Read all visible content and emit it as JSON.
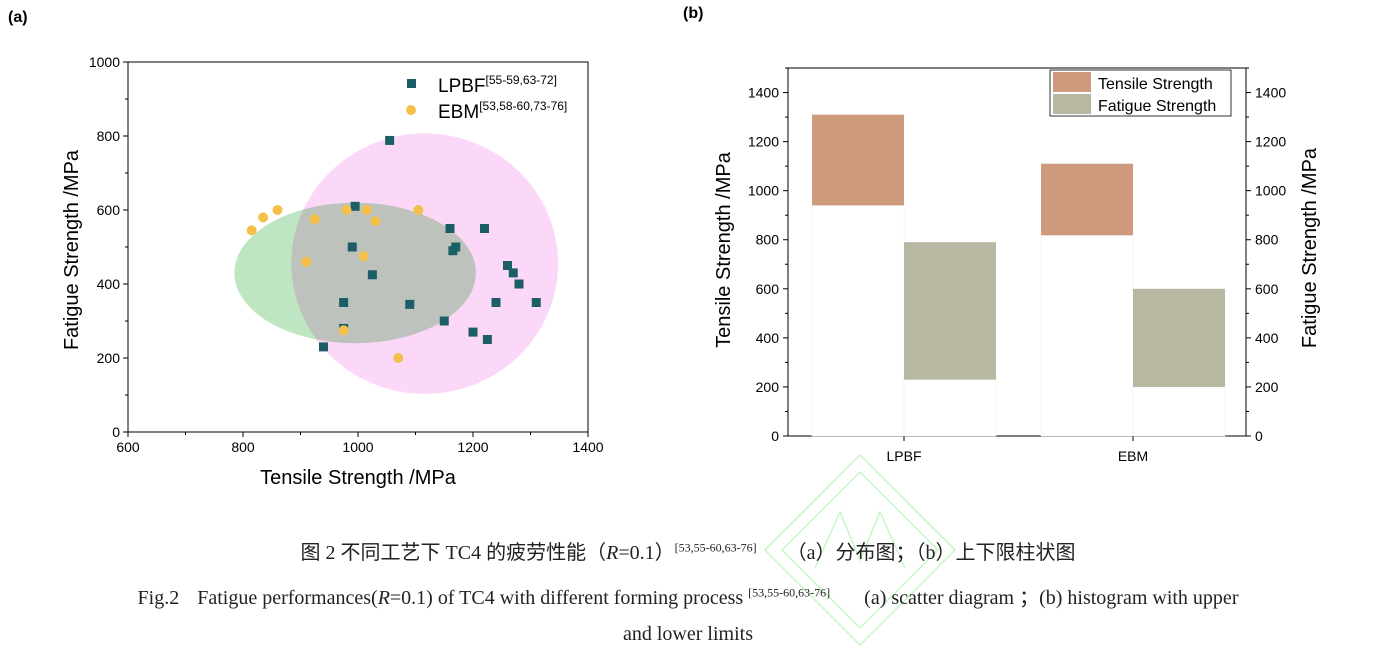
{
  "panel_labels": {
    "a": "(a)",
    "b": "(b)"
  },
  "chart_data": [
    {
      "type": "scatter",
      "xlabel": "Tensile Strength /MPa",
      "ylabel": "Fatigue Strength /MPa",
      "xlim": [
        600,
        1400
      ],
      "ylim": [
        0,
        1000
      ],
      "xticks": [
        600,
        800,
        1000,
        1200,
        1400
      ],
      "yticks": [
        0,
        200,
        400,
        600,
        800,
        1000
      ],
      "legend_position": "top-right",
      "series": [
        {
          "name": "LPBF",
          "name_sup": "[55-59,63-72]",
          "marker": "square",
          "color": "#1b5e66",
          "points": [
            [
              1055,
              788
            ],
            [
              995,
              610
            ],
            [
              990,
              500
            ],
            [
              1025,
              425
            ],
            [
              975,
              350
            ],
            [
              975,
              280
            ],
            [
              940,
              230
            ],
            [
              1090,
              345
            ],
            [
              1160,
              550
            ],
            [
              1165,
              490
            ],
            [
              1170,
              500
            ],
            [
              1220,
              550
            ],
            [
              1150,
              300
            ],
            [
              1200,
              270
            ],
            [
              1225,
              250
            ],
            [
              1240,
              350
            ],
            [
              1260,
              450
            ],
            [
              1270,
              430
            ],
            [
              1280,
              400
            ],
            [
              1310,
              350
            ]
          ]
        },
        {
          "name": "EBM",
          "name_sup": "[53,58-60,73-76]",
          "marker": "circle",
          "color": "#f5c04a",
          "points": [
            [
              815,
              545
            ],
            [
              835,
              580
            ],
            [
              860,
              600
            ],
            [
              910,
              460
            ],
            [
              925,
              575
            ],
            [
              980,
              600
            ],
            [
              1015,
              600
            ],
            [
              1030,
              570
            ],
            [
              1010,
              475
            ],
            [
              1105,
              600
            ],
            [
              975,
              275
            ],
            [
              1070,
              200
            ]
          ]
        }
      ],
      "regions": [
        {
          "group": "EBM",
          "color": "#7fce85",
          "cx": 995,
          "cy": 430,
          "rx": 210,
          "ry": 190
        },
        {
          "group": "LPBF",
          "color": "#f9b8f2",
          "cx": 1116,
          "cy": 455,
          "rx": 232,
          "ry": 352
        }
      ]
    },
    {
      "type": "bar",
      "categories": [
        "LPBF",
        "EBM"
      ],
      "ylabel_left": "Tensile Strength /MPa",
      "ylabel_right": "Fatigue Strength /MPa",
      "ylim": [
        0,
        1500
      ],
      "yticks": [
        0,
        200,
        400,
        600,
        800,
        1000,
        1200,
        1400
      ],
      "legend_position": "top-right",
      "series": [
        {
          "name": "Tensile Strength",
          "color": "#cd9a7e",
          "ranges": [
            [
              940,
              1310
            ],
            [
              818,
              1110
            ]
          ]
        },
        {
          "name": "Fatigue Strength",
          "color": "#b7b7a2",
          "ranges": [
            [
              230,
              790
            ],
            [
              200,
              600
            ]
          ]
        }
      ]
    }
  ],
  "caption": {
    "zh_prefix": "图 2  不同工艺下 TC4 的疲劳性能（",
    "r_symbol": "R",
    "zh_r_value": "=0.1）",
    "zh_refs": "[53,55-60,63-76]",
    "zh_suffix": "（a）分布图；（b）上下限柱状图",
    "en_fig": "Fig.2",
    "en_text1": "Fatigue performances(",
    "en_r_value": "=0.1) of TC4 with different forming process ",
    "en_refs": "[53,55-60,63-76]",
    "en_text2": "(a) scatter diagram  ；(b) histogram with upper",
    "en_text3": "and lower limits"
  }
}
